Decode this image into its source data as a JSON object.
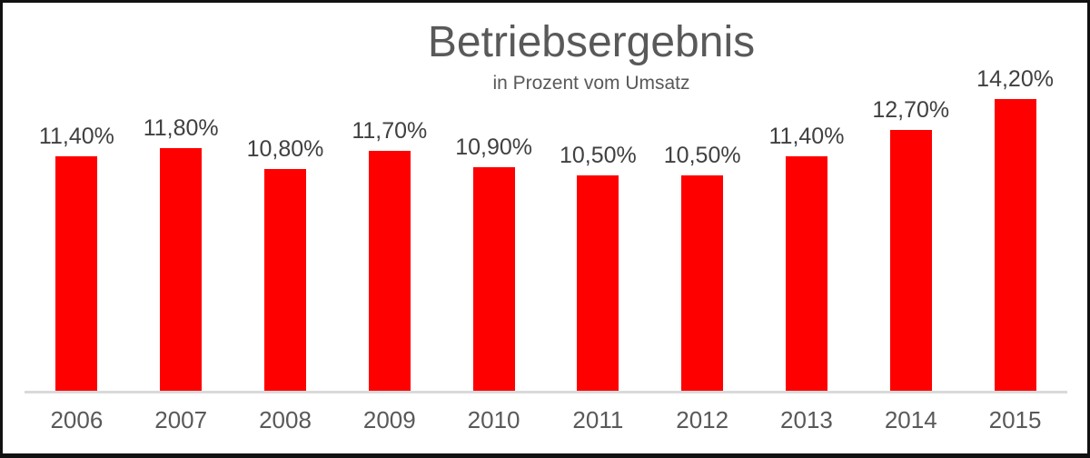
{
  "chart_data": {
    "type": "bar",
    "title": "Betriebsergebnis",
    "subtitle": "in Prozent vom Umsatz",
    "categories": [
      "2006",
      "2007",
      "2008",
      "2009",
      "2010",
      "2011",
      "2012",
      "2013",
      "2014",
      "2015"
    ],
    "values": [
      11.4,
      11.8,
      10.8,
      11.7,
      10.9,
      10.5,
      10.5,
      11.4,
      12.7,
      14.2
    ],
    "value_labels": [
      "11,40%",
      "11,80%",
      "10,80%",
      "11,70%",
      "10,90%",
      "10,50%",
      "10,50%",
      "11,40%",
      "12,70%",
      "14,20%"
    ],
    "xlabel": "",
    "ylabel": "",
    "baseline": 0,
    "grid": false,
    "legend": false,
    "bar_color": "#fe0000",
    "value_label_color": "#404040",
    "tick_label_color": "#595959",
    "title_color": "#595959",
    "axis_line_color": "#d9d9d9",
    "frame_border_color": "#111111"
  }
}
